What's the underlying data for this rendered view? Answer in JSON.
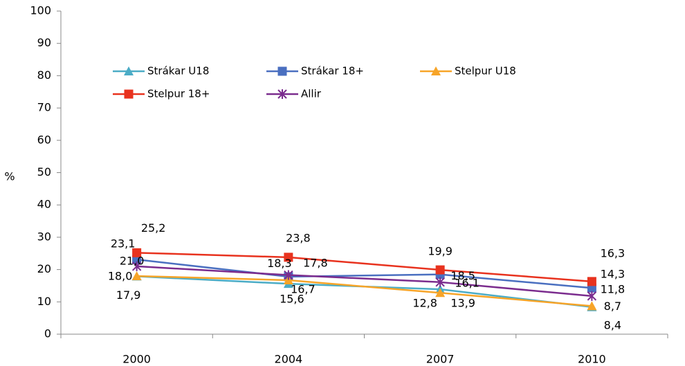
{
  "chart_data": {
    "type": "line",
    "y_label": "%",
    "categories": [
      "2000",
      "2004",
      "2007",
      "2010"
    ],
    "ylim": [
      0,
      100
    ],
    "yticks": [
      0,
      10,
      20,
      30,
      40,
      50,
      60,
      70,
      80,
      90,
      100
    ],
    "series": [
      {
        "name": "Strákar U18",
        "color": "#4bacc6",
        "marker": "triangle",
        "values": [
          17.9,
          15.6,
          13.9,
          8.4
        ],
        "value_labels": [
          "17,9",
          "15,6",
          "13,9",
          "8,4"
        ]
      },
      {
        "name": "Strákar 18+",
        "color": "#4a6fc0",
        "marker": "square",
        "values": [
          23.1,
          17.8,
          18.5,
          14.3
        ],
        "value_labels": [
          "23,1",
          "17,8",
          "18,5",
          "14,3"
        ]
      },
      {
        "name": "Stelpur U18",
        "color": "#f7a428",
        "marker": "triangle",
        "values": [
          18.0,
          16.7,
          12.8,
          8.7
        ],
        "value_labels": [
          "18,0",
          "16,7",
          "12,8",
          "8,7"
        ]
      },
      {
        "name": "Stelpur 18+",
        "color": "#e8321e",
        "marker": "square",
        "values": [
          25.2,
          23.8,
          19.9,
          16.3
        ],
        "value_labels": [
          "25,2",
          "23,8",
          "19,9",
          "16,3"
        ]
      },
      {
        "name": "Allir",
        "color": "#7b2c8e",
        "marker": "asterisk",
        "values": [
          21.0,
          18.3,
          16.1,
          11.8
        ],
        "value_labels": [
          "21,0",
          "18,3",
          "16,1",
          "11,8"
        ]
      }
    ]
  }
}
